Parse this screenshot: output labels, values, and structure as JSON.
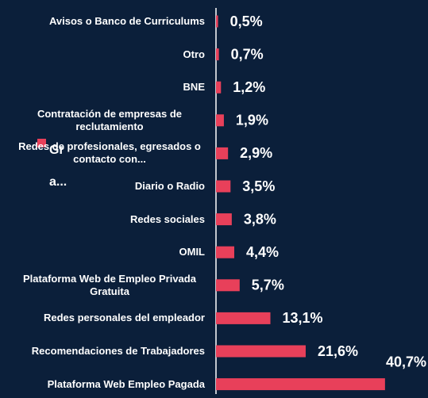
{
  "chart_data": {
    "type": "bar",
    "orientation": "horizontal",
    "categories": [
      "Avisos o Banco de Curriculums",
      "Otro",
      "BNE",
      "Contratación de empresas de reclutamiento",
      "Redes de profesionales, egresados o contacto con...",
      "Diario o Radio",
      "Redes sociales",
      "OMIL",
      "Plataforma Web de Empleo Privada Gratuita",
      "Redes personales del empleador",
      "Recomendaciones de Trabajadores",
      "Plataforma Web Empleo Pagada"
    ],
    "series": [
      {
        "name": "Gr a...",
        "color": "#e8405a",
        "values": [
          0.5,
          0.7,
          1.2,
          1.9,
          2.9,
          3.5,
          3.8,
          4.4,
          5.7,
          13.1,
          21.6,
          40.7
        ],
        "value_labels": [
          "0,5%",
          "0,7%",
          "1,2%",
          "1,9%",
          "2,9%",
          "3,5%",
          "3,8%",
          "4,4%",
          "5,7%",
          "13,1%",
          "21,6%",
          "40,7%"
        ]
      }
    ]
  }
}
